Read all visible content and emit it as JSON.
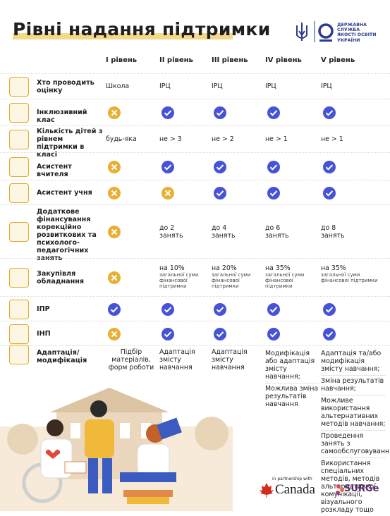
{
  "header": {
    "title": "Рівні надання підтримки",
    "org": [
      "ДЕРЖАВНА",
      "СЛУЖБА",
      "ЯКОСТІ ОСВІТИ",
      "УКРАЇНИ"
    ]
  },
  "table": {
    "columns": [
      "І рівень",
      "ІІ рівень",
      "ІІІ рівень",
      "IV рівень",
      "V рівень"
    ],
    "rows": [
      {
        "label": "Хто проводить оцінку",
        "cells": [
          "Школа",
          "ІРЦ",
          "ІРЦ",
          "ІРЦ",
          "ІРЦ"
        ]
      },
      {
        "label": "Інклюзивний клас",
        "cells": [
          false,
          true,
          true,
          true,
          true
        ]
      },
      {
        "label": "Кількість дітей з рівнем підтримки в класі",
        "cells": [
          "будь-яка",
          "не > 3",
          "не > 2",
          "не > 1",
          "не > 1"
        ]
      },
      {
        "label": "Асистент вчителя",
        "cells": [
          false,
          true,
          true,
          true,
          true
        ]
      },
      {
        "label": "Асистент учня",
        "cells": [
          false,
          false,
          true,
          true,
          true
        ]
      },
      {
        "label": "Додаткове фінансування корекційно розвиткових та психолого-педагогічних занять",
        "cells": [
          false,
          "до 2 занять",
          "до 4 занять",
          "до 6 занять",
          "до 8 занять"
        ]
      },
      {
        "label": "Закупівля обладнання",
        "cells": [
          false,
          {
            "main": "на 10%",
            "note": "загальної суми фінансової підтримки"
          },
          {
            "main": "на 20%",
            "note": "загальної суми фінансової підтримки"
          },
          {
            "main": "на 35%",
            "note": "загальної суми фінансової підтримки"
          },
          {
            "main": "на 35%",
            "note": "загальної суми фінансової підтримки"
          }
        ]
      },
      {
        "label": "ІПР",
        "cells": [
          true,
          true,
          true,
          true,
          true
        ]
      },
      {
        "label": "ІНП",
        "cells": [
          false,
          true,
          true,
          true,
          true
        ]
      },
      {
        "label": "Адаптація/ модифікація",
        "cells": [
          "Підбір матеріалів, форм роботи",
          "Адаптація змісту навчання",
          "Адаптація змісту навчання",
          [
            "Модифікація або адаптація змісту навчання;",
            "Можлива зміна результатів навчання"
          ],
          [
            "Адаптація та/або модифікація змісту навчання;",
            "Зміна результатів навчання;",
            "Можливе використання альтернативних методів навчання;",
            "Проведення занять з самообслуговування;",
            "Використання спеціальних методів, методів альтернативної комунікації, візуального розкладу тощо"
          ]
        ]
      }
    ]
  },
  "footer": {
    "partner_note": "in partnership with",
    "partners": [
      "Canada",
      "SURGe"
    ]
  }
}
